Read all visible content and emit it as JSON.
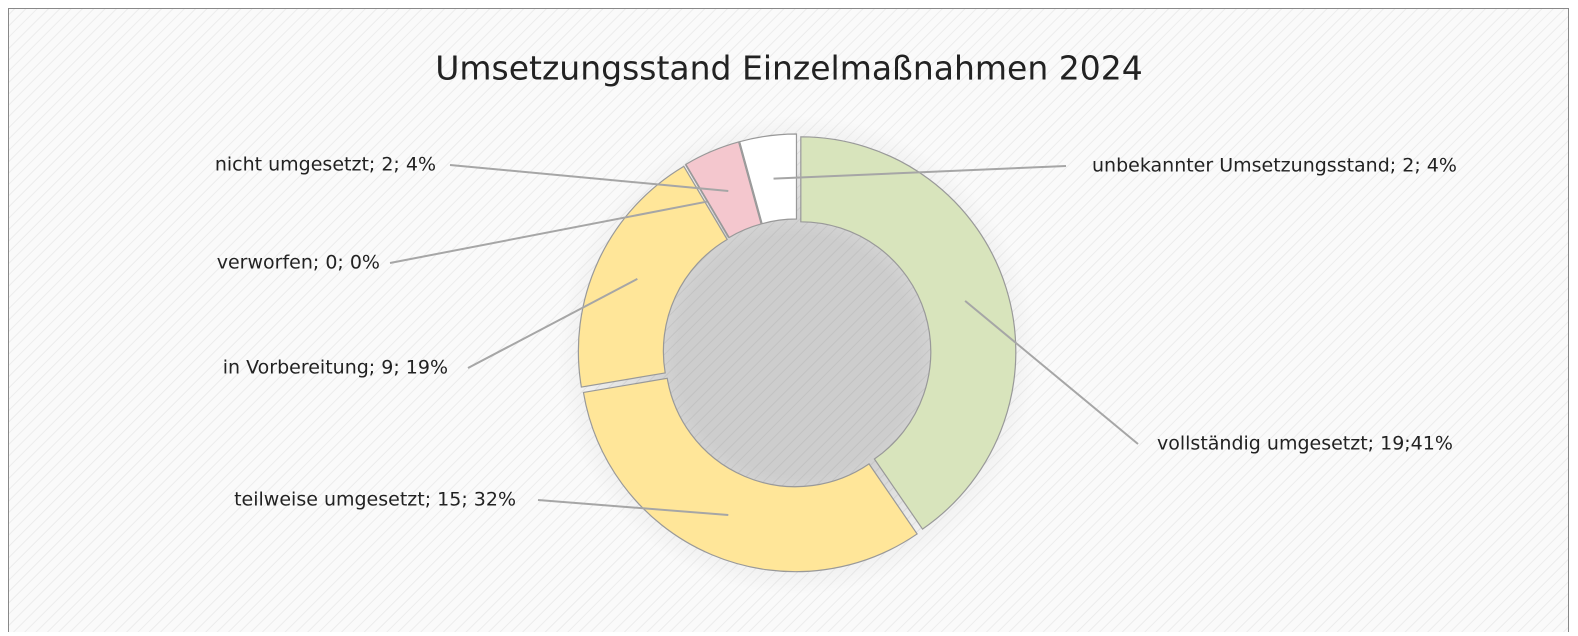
{
  "chart_data": {
    "type": "donut",
    "title": "Umsetzungsstand Einzelmaßnahmen 2024",
    "values": [
      19,
      15,
      9,
      0,
      2,
      2
    ],
    "value_labels": [
      "vollständig umgesetzt; 19;41%",
      "teilweise umgesetzt; 15; 32%",
      "in Vorbereitung; 9; 19%",
      "verworfen; 0; 0%",
      "nicht umgesetzt; 2; 4%",
      "unbekannter Umsetzungsstand; 2; 4%"
    ],
    "colors": [
      "#d8e4bc",
      "#ffe699",
      "#ffe699",
      "#ffe699",
      "#f4c7ce",
      "#ffffff"
    ]
  }
}
